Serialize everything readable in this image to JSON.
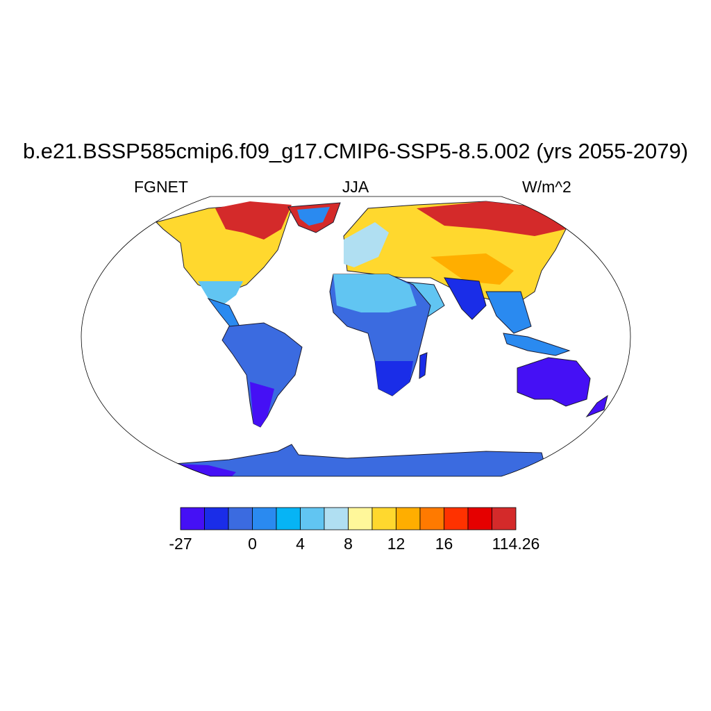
{
  "title": "b.e21.BSSP585cmip6.f09_g17.CMIP6-SSP5-8.5.002 (yrs 2055-2079)",
  "subtitle": {
    "left": "FGNET",
    "center": "JJA",
    "right": "W/m^2"
  },
  "colorbar": {
    "colors": [
      "#4510f5",
      "#1a2de8",
      "#3b6be0",
      "#2a8af0",
      "#06b4f5",
      "#61c5f2",
      "#b0dff2",
      "#fff79a",
      "#ffd82e",
      "#ffae00",
      "#ff7a00",
      "#ff3200",
      "#e50000",
      "#d42a2a"
    ],
    "labels": [
      "-27",
      "0",
      "4",
      "8",
      "12",
      "16",
      "114.26"
    ]
  },
  "colors": {
    "frame": "#000000",
    "land_outline": "#1a1a2e"
  }
}
